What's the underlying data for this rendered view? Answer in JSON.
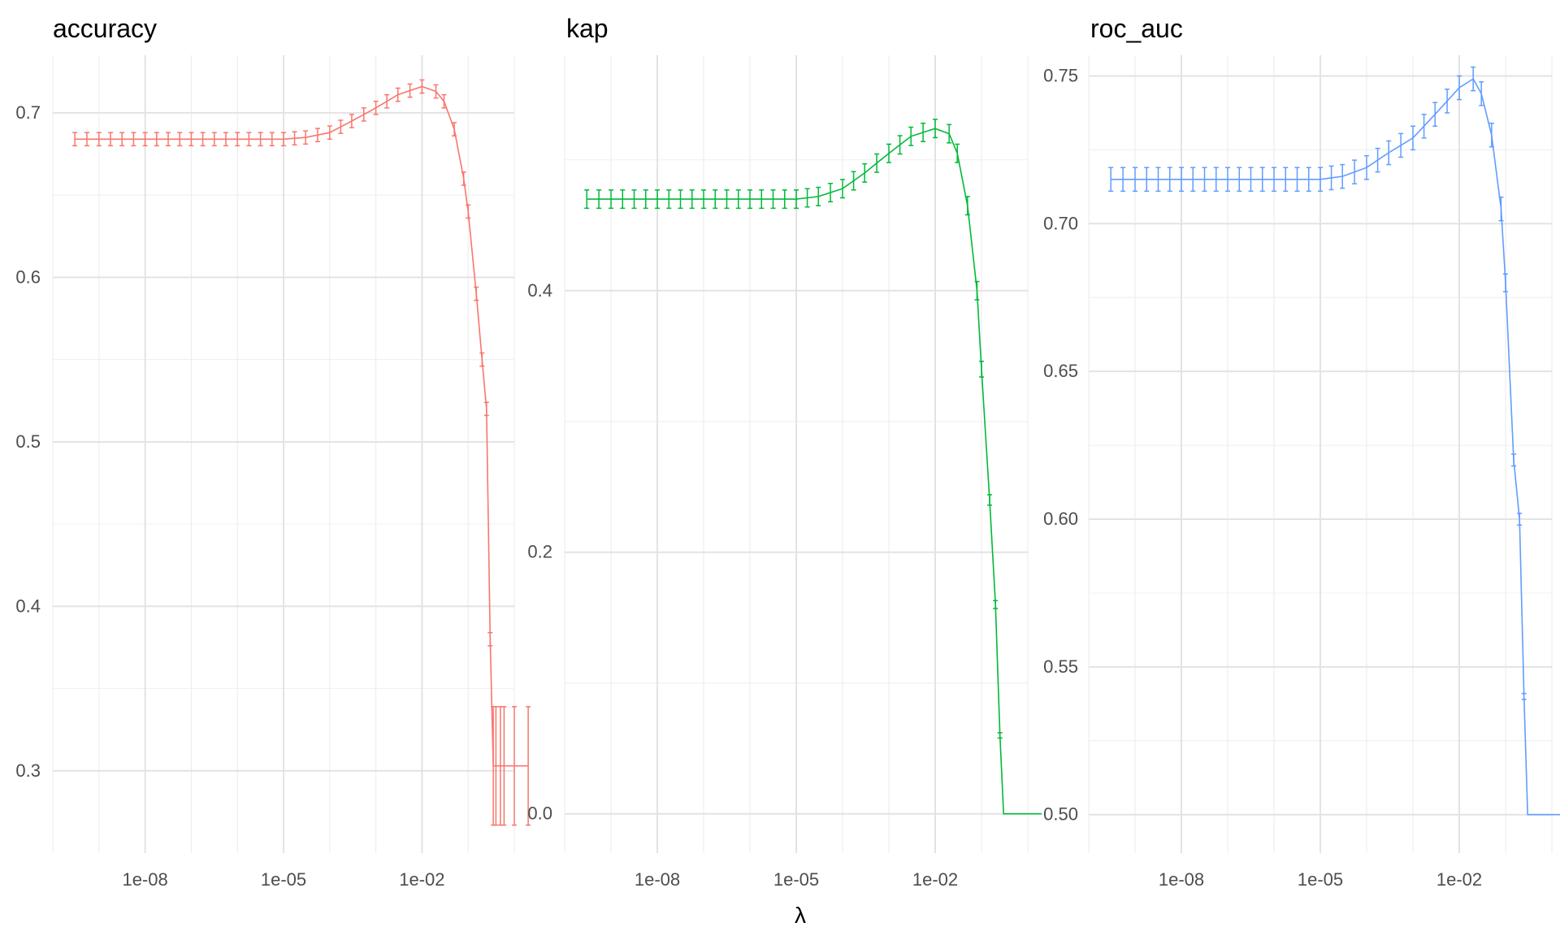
{
  "xlabel": "λ",
  "chart_data": [
    {
      "type": "line",
      "title": "accuracy",
      "color": "#F8766D",
      "xscale": "log10",
      "xlim": [
        1e-10,
        1
      ],
      "ylim": [
        0.25,
        0.735
      ],
      "xticks": [
        "1e-08",
        "1e-05",
        "1e-02"
      ],
      "yticks": [
        "0.3",
        "0.4",
        "0.5",
        "0.6",
        "0.7"
      ],
      "grid": true,
      "series": [
        {
          "x": [
            3e-10,
            1e-09,
            1e-08,
            1e-07,
            1e-06,
            1e-05,
            3e-05,
            0.0001,
            0.0003,
            0.001,
            0.003,
            0.01,
            0.02,
            0.03,
            0.05,
            0.08,
            0.1,
            0.15,
            0.2,
            0.25,
            0.3,
            0.35,
            0.4,
            0.5,
            0.6,
            1.0,
            2.0
          ],
          "y": [
            0.684,
            0.684,
            0.684,
            0.684,
            0.684,
            0.684,
            0.685,
            0.688,
            0.695,
            0.703,
            0.711,
            0.716,
            0.713,
            0.707,
            0.69,
            0.66,
            0.64,
            0.59,
            0.55,
            0.52,
            0.38,
            0.303,
            0.303,
            0.303,
            0.303,
            0.303,
            0.303
          ],
          "err": [
            0.004,
            0.004,
            0.004,
            0.004,
            0.004,
            0.004,
            0.004,
            0.004,
            0.004,
            0.004,
            0.004,
            0.004,
            0.004,
            0.004,
            0.004,
            0.004,
            0.004,
            0.004,
            0.004,
            0.004,
            0.004,
            0.036,
            0.036,
            0.036,
            0.036,
            0.036,
            0.036
          ]
        }
      ]
    },
    {
      "type": "line",
      "title": "kap",
      "color": "#00BA38",
      "xscale": "log10",
      "xlim": [
        1e-10,
        1
      ],
      "ylim": [
        -0.03,
        0.58
      ],
      "xticks": [
        "1e-08",
        "1e-05",
        "1e-02"
      ],
      "yticks": [
        "0.0",
        "0.2",
        "0.4"
      ],
      "grid": true,
      "series": [
        {
          "x": [
            3e-10,
            1e-09,
            1e-08,
            1e-07,
            1e-06,
            1e-05,
            3e-05,
            0.0001,
            0.0003,
            0.001,
            0.003,
            0.01,
            0.02,
            0.03,
            0.05,
            0.08,
            0.1,
            0.15,
            0.2,
            0.25,
            0.3,
            0.35,
            0.4,
            0.5,
            0.6,
            1.0,
            2.0
          ],
          "y": [
            0.47,
            0.47,
            0.47,
            0.47,
            0.47,
            0.47,
            0.472,
            0.478,
            0.49,
            0.505,
            0.518,
            0.524,
            0.52,
            0.505,
            0.465,
            0.4,
            0.34,
            0.24,
            0.16,
            0.06,
            0.0,
            0.0,
            0.0,
            0.0,
            0.0,
            0.0,
            0.0
          ],
          "err": [
            0.007,
            0.007,
            0.007,
            0.007,
            0.007,
            0.007,
            0.007,
            0.007,
            0.007,
            0.007,
            0.007,
            0.007,
            0.007,
            0.007,
            0.007,
            0.007,
            0.006,
            0.004,
            0.003,
            0.002,
            0.0,
            0.0,
            0.0,
            0.0,
            0.0,
            0.0,
            0.0
          ]
        }
      ]
    },
    {
      "type": "line",
      "title": "roc_auc",
      "color": "#619CFF",
      "xscale": "log10",
      "xlim": [
        1e-10,
        1
      ],
      "ylim": [
        0.487,
        0.757
      ],
      "xticks": [
        "1e-08",
        "1e-05",
        "1e-02"
      ],
      "yticks": [
        "0.50",
        "0.55",
        "0.60",
        "0.65",
        "0.70",
        "0.75"
      ],
      "grid": true,
      "series": [
        {
          "x": [
            3e-10,
            1e-09,
            1e-08,
            1e-07,
            1e-06,
            1e-05,
            3e-05,
            0.0001,
            0.0003,
            0.001,
            0.003,
            0.01,
            0.02,
            0.03,
            0.05,
            0.08,
            0.1,
            0.15,
            0.2,
            0.25,
            0.3,
            0.35,
            0.4,
            0.5,
            0.6,
            1.0,
            2.0
          ],
          "y": [
            0.715,
            0.715,
            0.715,
            0.715,
            0.715,
            0.715,
            0.716,
            0.719,
            0.724,
            0.729,
            0.737,
            0.746,
            0.749,
            0.744,
            0.73,
            0.705,
            0.68,
            0.62,
            0.6,
            0.54,
            0.5,
            0.5,
            0.5,
            0.5,
            0.5,
            0.5,
            0.5
          ],
          "err": [
            0.004,
            0.004,
            0.004,
            0.004,
            0.004,
            0.004,
            0.004,
            0.004,
            0.004,
            0.004,
            0.004,
            0.004,
            0.004,
            0.004,
            0.004,
            0.004,
            0.003,
            0.002,
            0.002,
            0.001,
            0.0,
            0.0,
            0.0,
            0.0,
            0.0,
            0.0,
            0.0
          ]
        }
      ]
    }
  ]
}
